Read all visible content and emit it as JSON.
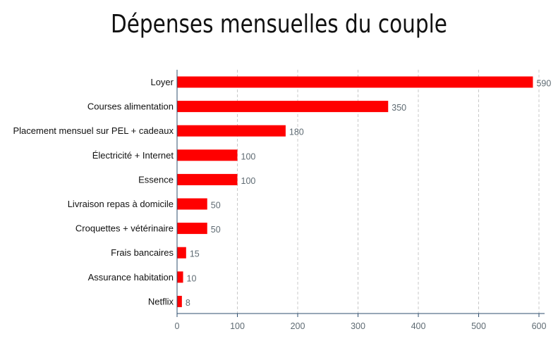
{
  "chart_data": {
    "type": "bar",
    "orientation": "horizontal",
    "title": "Dépenses mensuelles du couple",
    "categories": [
      "Loyer",
      "Courses alimentation",
      "Placement mensuel sur PEL + cadeaux",
      "Électricité + Internet",
      "Essence",
      "Livraison repas à domicile",
      "Croquettes + vétérinaire",
      "Frais bancaires",
      "Assurance habitation",
      "Netflix"
    ],
    "values": [
      590,
      350,
      180,
      100,
      100,
      50,
      50,
      15,
      10,
      8
    ],
    "value_labels": [
      "590",
      "350",
      "180",
      "100",
      "100",
      "50",
      "50",
      "15",
      "10",
      "8"
    ],
    "xlim": [
      0,
      600
    ],
    "xticks": [
      0,
      100,
      200,
      300,
      400,
      500,
      600
    ],
    "xtick_labels": [
      "0",
      "100",
      "200",
      "300",
      "400",
      "500",
      "600"
    ],
    "grid": "vertical-dashed",
    "bar_color": "#ff0000",
    "grid_color": "#c8c8c8",
    "axis_color": "#2f4f6f"
  }
}
